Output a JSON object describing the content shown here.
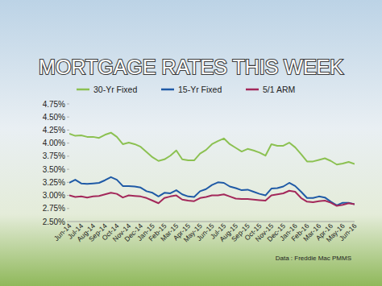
{
  "chart_data": {
    "type": "line",
    "title": "MORTGAGE RATES THIS WEEK",
    "source": "Data : Freddie Mac PMMS",
    "categories": [
      "Jun-14",
      null,
      "Jul-14",
      null,
      "Aug-14",
      null,
      "Sep-14",
      null,
      "Oct-14",
      null,
      "Nov-14",
      null,
      "Dec-14",
      null,
      "Jan-15",
      null,
      "Feb-15",
      null,
      "Mar-15",
      null,
      "Apr-15",
      null,
      "May-15",
      null,
      "Jun-15",
      null,
      "Jul-15",
      null,
      "Aug-15",
      null,
      "Sep-15",
      null,
      "Oct-15",
      null,
      "Nov-15",
      null,
      "Dec-15",
      null,
      "Jan-16",
      null,
      "Feb-16",
      null,
      "Mar-16",
      null,
      "Apr-16",
      null,
      "May-16",
      null,
      "Jun-16"
    ],
    "series": [
      {
        "name": "30-Yr Fixed",
        "color": "#8cc152",
        "values": [
          4.18,
          4.14,
          4.15,
          4.12,
          4.12,
          4.1,
          4.16,
          4.2,
          4.12,
          3.98,
          4.01,
          3.98,
          3.93,
          3.83,
          3.73,
          3.66,
          3.69,
          3.76,
          3.86,
          3.69,
          3.67,
          3.67,
          3.8,
          3.87,
          3.98,
          4.04,
          4.09,
          3.98,
          3.91,
          3.84,
          3.89,
          3.86,
          3.82,
          3.76,
          3.98,
          3.95,
          3.95,
          4.01,
          3.92,
          3.79,
          3.65,
          3.65,
          3.68,
          3.71,
          3.66,
          3.59,
          3.61,
          3.64,
          3.6
        ]
      },
      {
        "name": "15-Yr Fixed",
        "color": "#1f5aa6",
        "values": [
          3.24,
          3.3,
          3.23,
          3.22,
          3.23,
          3.24,
          3.29,
          3.35,
          3.3,
          3.18,
          3.18,
          3.17,
          3.15,
          3.08,
          3.05,
          2.98,
          3.05,
          3.04,
          3.1,
          3.02,
          2.98,
          2.97,
          3.08,
          3.12,
          3.2,
          3.25,
          3.24,
          3.17,
          3.14,
          3.1,
          3.11,
          3.07,
          3.03,
          3.0,
          3.13,
          3.14,
          3.17,
          3.24,
          3.18,
          3.07,
          2.95,
          2.95,
          2.98,
          2.96,
          2.88,
          2.81,
          2.86,
          2.86,
          2.83
        ]
      },
      {
        "name": "5/1 ARM",
        "color": "#a3285a",
        "values": [
          3.0,
          2.97,
          2.98,
          2.96,
          2.98,
          2.99,
          3.02,
          3.05,
          3.03,
          2.96,
          3.0,
          2.99,
          2.98,
          2.95,
          2.9,
          2.85,
          2.95,
          2.98,
          3.0,
          2.92,
          2.9,
          2.89,
          2.95,
          2.97,
          3.0,
          3.0,
          3.02,
          2.98,
          2.94,
          2.93,
          2.93,
          2.92,
          2.91,
          2.9,
          3.0,
          3.02,
          3.04,
          3.09,
          3.07,
          2.95,
          2.88,
          2.87,
          2.89,
          2.9,
          2.86,
          2.8,
          2.82,
          2.85,
          2.83
        ]
      }
    ],
    "ylim": [
      2.5,
      4.75
    ],
    "yticks": [
      {
        "value": 2.5,
        "label": "2.50%"
      },
      {
        "value": 2.75,
        "label": "2.75%"
      },
      {
        "value": 3.0,
        "label": "3.00%"
      },
      {
        "value": 3.25,
        "label": "3.25%"
      },
      {
        "value": 3.5,
        "label": "3.50%"
      },
      {
        "value": 3.75,
        "label": "3.75%"
      },
      {
        "value": 4.0,
        "label": "4.00%"
      },
      {
        "value": 4.25,
        "label": "4.25%"
      },
      {
        "value": 4.5,
        "label": "4.50%"
      },
      {
        "value": 4.75,
        "label": "4.75%"
      }
    ],
    "grid": false,
    "legend": "top"
  }
}
